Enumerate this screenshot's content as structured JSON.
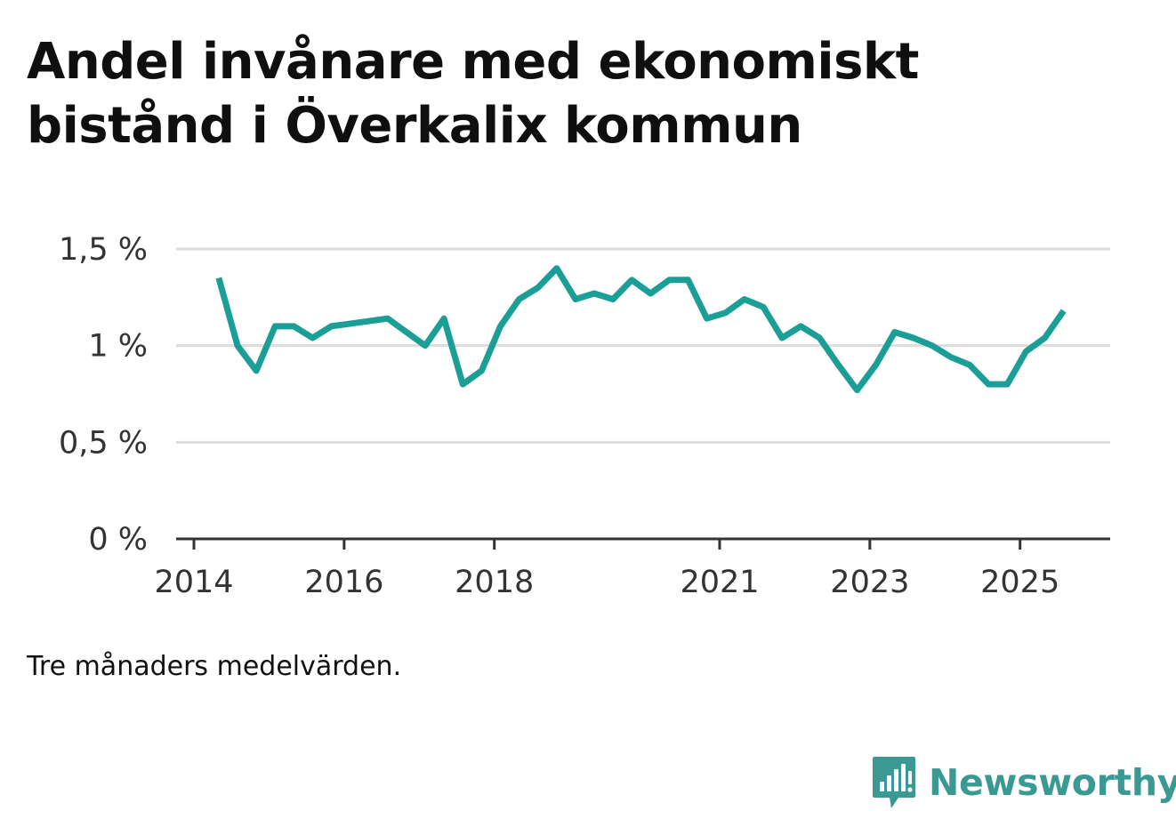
{
  "title": "Andel invånare med ekonomiskt bistånd i Överkalix kommun",
  "footnote": "Tre månaders medelvärden.",
  "brand": {
    "name": "Newsworthy",
    "logo_icon": "newsworthy-bar-chart-icon",
    "color": "#3a9a93"
  },
  "colors": {
    "line": "#1a9e96",
    "grid": "#dddddd",
    "axis": "#333333"
  },
  "chart_data": {
    "type": "line",
    "title": "Andel invånare med ekonomiskt bistånd i Överkalix kommun",
    "xlabel": "",
    "ylabel": "",
    "ylim": [
      0,
      1.5
    ],
    "xlim": [
      2014.0,
      2026.2
    ],
    "grid": true,
    "y_ticks": [
      {
        "value": 0,
        "label": "0 %"
      },
      {
        "value": 0.5,
        "label": "0,5 %"
      },
      {
        "value": 1,
        "label": "1 %"
      },
      {
        "value": 1.5,
        "label": "1,5 %"
      }
    ],
    "x_ticks": [
      {
        "value": 2014,
        "label": "2014"
      },
      {
        "value": 2016,
        "label": "2016"
      },
      {
        "value": 2018,
        "label": "2018"
      },
      {
        "value": 2021,
        "label": "2021"
      },
      {
        "value": 2023,
        "label": "2023"
      },
      {
        "value": 2025,
        "label": "2025"
      }
    ],
    "series": [
      {
        "name": "Andel invånare med ekonomiskt bistånd",
        "x": [
          2014.33,
          2014.58,
          2014.83,
          2015.08,
          2015.33,
          2015.58,
          2015.83,
          2016.58,
          2017.08,
          2017.33,
          2017.58,
          2017.83,
          2018.08,
          2018.33,
          2018.58,
          2018.83,
          2019.08,
          2019.33,
          2019.58,
          2019.83,
          2020.08,
          2020.33,
          2020.58,
          2020.83,
          2021.08,
          2021.33,
          2021.58,
          2021.83,
          2022.08,
          2022.33,
          2022.58,
          2022.83,
          2023.08,
          2023.33,
          2023.58,
          2023.83,
          2024.08,
          2024.33,
          2024.58,
          2024.83,
          2025.08,
          2025.33,
          2025.58
        ],
        "values": [
          1.35,
          1.0,
          0.87,
          1.1,
          1.1,
          1.04,
          1.1,
          1.14,
          1.0,
          1.14,
          0.8,
          0.87,
          1.1,
          1.24,
          1.3,
          1.4,
          1.24,
          1.27,
          1.24,
          1.34,
          1.27,
          1.34,
          1.34,
          1.14,
          1.17,
          1.24,
          1.2,
          1.04,
          1.1,
          1.04,
          0.9,
          0.77,
          0.9,
          1.07,
          1.04,
          1.0,
          0.94,
          0.9,
          0.8,
          0.8,
          0.97,
          1.04,
          1.18
        ]
      }
    ]
  }
}
